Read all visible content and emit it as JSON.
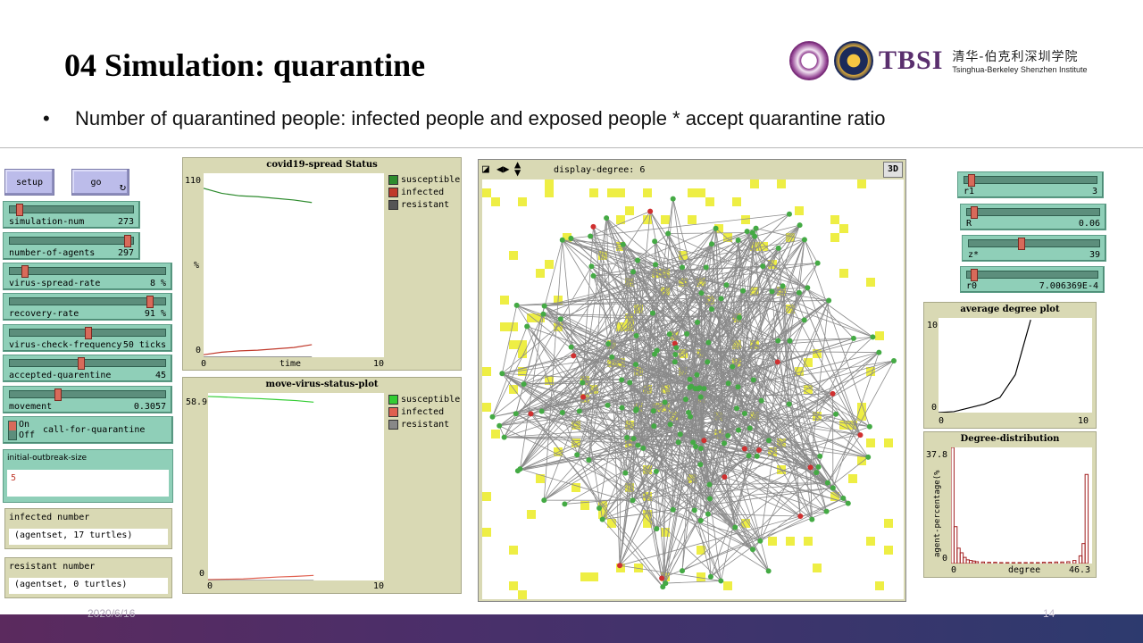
{
  "slide": {
    "title": "04 Simulation: quarantine",
    "bullet": "Number of quarantined people: infected people and exposed people * accept quarantine ratio",
    "date": "2020/6/16",
    "page_number": "14"
  },
  "branding": {
    "tbsi": "TBSI",
    "tbsi_cn": "清华-伯克利深圳学院",
    "tbsi_en": "Tsinghua-Berkeley Shenzhen Institute"
  },
  "buttons": {
    "setup": "setup",
    "go": "go",
    "go_icon": "forever-icon"
  },
  "sliders": [
    {
      "label": "simulation-num",
      "value": "273",
      "fraction": 0.05
    },
    {
      "label": "number-of-agents",
      "value": "297",
      "fraction": 0.97
    },
    {
      "label": "virus-spread-rate",
      "value": "8 %",
      "fraction": 0.08
    },
    {
      "label": "recovery-rate",
      "value": "91 %",
      "fraction": 0.91
    },
    {
      "label": "virus-check-frequency",
      "value": "50 ticks",
      "fraction": 0.5
    },
    {
      "label": "accepted-quarentine",
      "value": "45",
      "fraction": 0.45
    },
    {
      "label": "movement",
      "value": "0.3057",
      "fraction": 0.3
    }
  ],
  "right_sliders": [
    {
      "label": "r1",
      "value": "3",
      "fraction": 0.03
    },
    {
      "label": "R",
      "value": "0.06",
      "fraction": 0.03
    },
    {
      "label": "z*",
      "value": "39",
      "fraction": 0.39
    },
    {
      "label": "r0",
      "value": "7.006369E-4",
      "fraction": 0.03
    }
  ],
  "switch": {
    "label": "call-for-quarantine",
    "on": "On",
    "off": "Off"
  },
  "input": {
    "label": "initial-outbreak-size",
    "value": "5"
  },
  "monitors": [
    {
      "label": "infected number",
      "value": "(agentset, 17 turtles)"
    },
    {
      "label": "resistant number",
      "value": "(agentset, 0 turtles)"
    }
  ],
  "world": {
    "display_label": "display-degree: 6",
    "threed": "3D"
  },
  "chart_data": [
    {
      "type": "line",
      "title": "covid19-spread Status",
      "xlabel": "time",
      "ylabel": "%",
      "xlim": [
        0,
        10
      ],
      "ylim": [
        0,
        110
      ],
      "x": [
        0,
        1,
        2,
        3,
        4,
        5,
        6
      ],
      "series": [
        {
          "name": "susceptible",
          "color": "#2e8b2e",
          "values": [
            101,
            98,
            96.5,
            96,
            95,
            94,
            92.5
          ]
        },
        {
          "name": "infected",
          "color": "#c0392b",
          "values": [
            1.5,
            3,
            3.8,
            4.2,
            5,
            5.8,
            7.5
          ]
        },
        {
          "name": "resistant",
          "color": "#555555",
          "values": [
            0,
            0,
            0,
            0,
            0,
            0,
            0
          ]
        }
      ]
    },
    {
      "type": "line",
      "title": "move-virus-status-plot",
      "xlim": [
        0,
        10
      ],
      "ylim": [
        0,
        58.9
      ],
      "x": [
        0,
        1,
        2,
        3,
        4,
        5,
        6
      ],
      "series": [
        {
          "name": "susceptible",
          "color": "#33cc33",
          "values": [
            57.8,
            57.6,
            57.3,
            57.1,
            56.8,
            56.5,
            56.0
          ]
        },
        {
          "name": "infected",
          "color": "#e06050",
          "values": [
            0.3,
            0.4,
            0.5,
            0.8,
            1.1,
            1.3,
            1.6
          ]
        },
        {
          "name": "resistant",
          "color": "#888888",
          "values": [
            0,
            0,
            0,
            0,
            0,
            0,
            0
          ]
        }
      ]
    },
    {
      "type": "line",
      "title": "average degree plot",
      "xlim": [
        0,
        10
      ],
      "ylim": [
        0,
        10
      ],
      "x": [
        0,
        1,
        2,
        3,
        4,
        5,
        6
      ],
      "series": [
        {
          "color": "#000000",
          "values": [
            0,
            0.1,
            0.5,
            0.9,
            1.6,
            4.0,
            9.8
          ]
        }
      ]
    },
    {
      "type": "bar",
      "title": "Degree-distribution",
      "xlabel": "degree",
      "ylabel": "agent-percentage(%",
      "xlim": [
        0,
        46.3
      ],
      "ylim": [
        0,
        37.8
      ],
      "x": [
        0,
        1,
        2,
        3,
        4,
        5,
        6,
        7,
        8,
        10,
        12,
        14,
        16,
        18,
        20,
        22,
        24,
        26,
        28,
        30,
        32,
        34,
        36,
        38,
        40,
        42,
        43,
        44,
        45
      ],
      "values": [
        37.8,
        12,
        5,
        3.5,
        2,
        1.2,
        1,
        0.8,
        0.6,
        0.5,
        0.4,
        0.4,
        0.3,
        0.3,
        0.3,
        0.3,
        0.3,
        0.3,
        0.3,
        0.4,
        0.4,
        0.5,
        0.5,
        0.6,
        1.0,
        2.5,
        6.5,
        29,
        0
      ]
    }
  ]
}
